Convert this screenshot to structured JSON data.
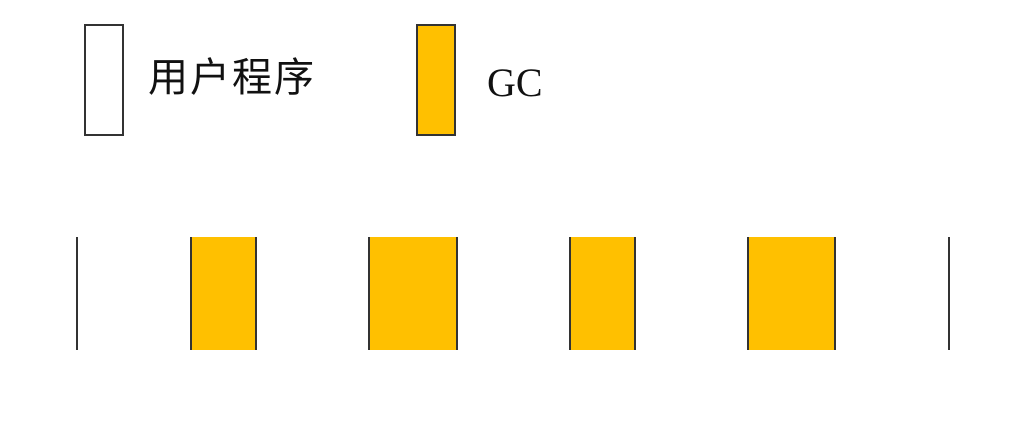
{
  "colors": {
    "user_program": "#ffffff",
    "gc": "#ffc000",
    "border": "#333333"
  },
  "legend": {
    "user_program_label": "用户程序",
    "gc_label": "GC"
  },
  "timeline": {
    "segments": [
      {
        "kind": "user_program",
        "duration": 113
      },
      {
        "kind": "gc",
        "duration": 67
      },
      {
        "kind": "user_program",
        "duration": 111
      },
      {
        "kind": "gc",
        "duration": 91
      },
      {
        "kind": "user_program",
        "duration": 111
      },
      {
        "kind": "gc",
        "duration": 68
      },
      {
        "kind": "user_program",
        "duration": 111
      },
      {
        "kind": "gc",
        "duration": 89
      },
      {
        "kind": "user_program",
        "duration": 113
      }
    ]
  }
}
